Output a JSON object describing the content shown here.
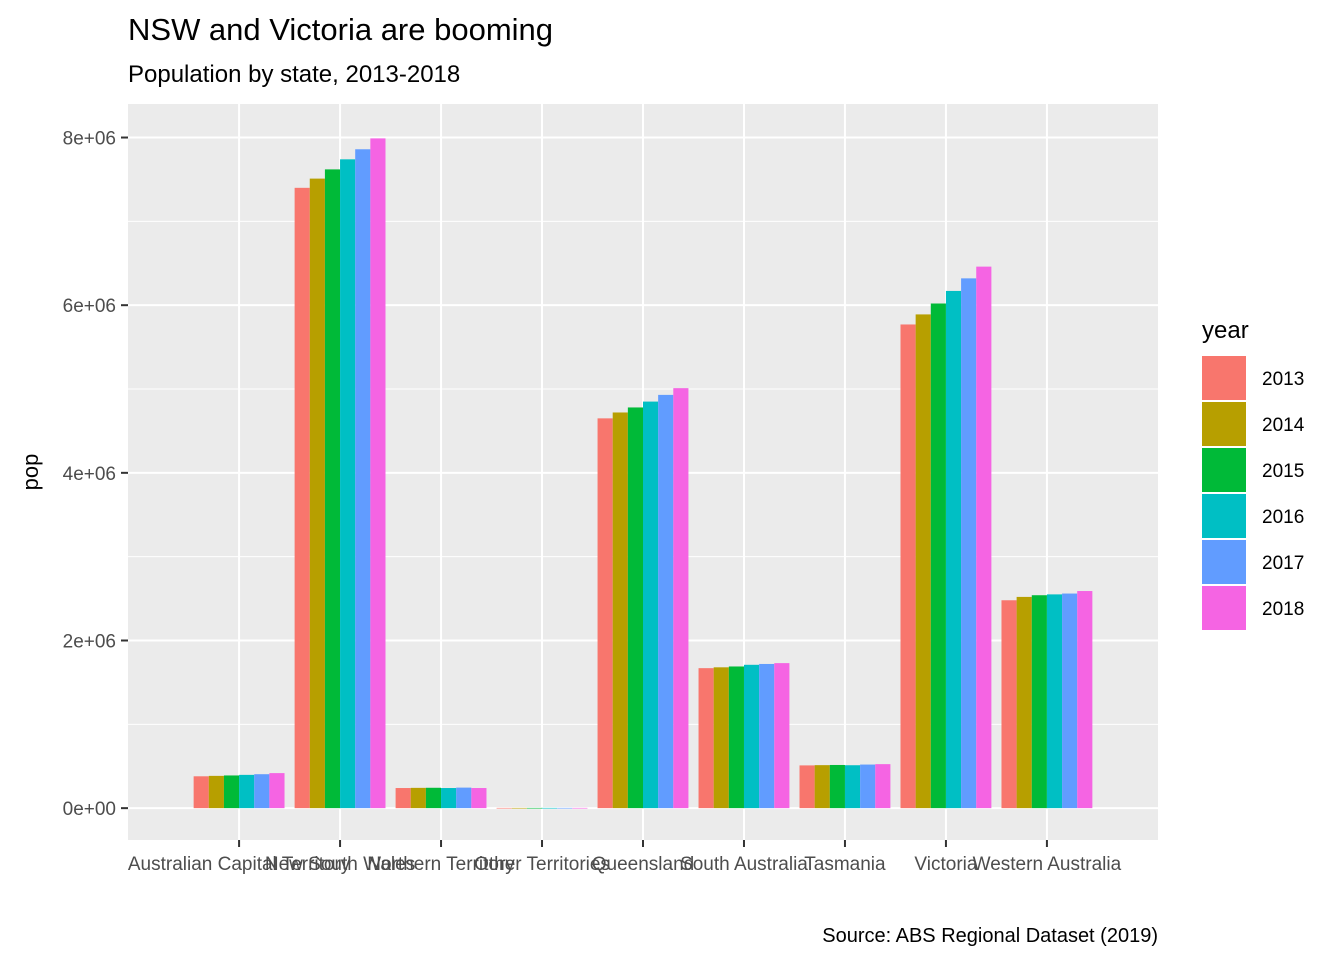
{
  "chart_data": {
    "type": "bar",
    "title": "NSW and Victoria are booming",
    "subtitle": "Population by state, 2013-2018",
    "caption": "Source: ABS Regional Dataset (2019)",
    "xlabel": "",
    "ylabel": "pop",
    "ylim": [
      -380000,
      8400000
    ],
    "yticks": [
      0,
      2000000,
      4000000,
      6000000,
      8000000
    ],
    "ytick_labels": [
      "0e+00",
      "2e+06",
      "4e+06",
      "6e+06",
      "8e+06"
    ],
    "grid": true,
    "legend": {
      "title": "year",
      "position": "right"
    },
    "categories": [
      "Australian Capital Territory",
      "New South Wales",
      "Northern Territory",
      "Other Territories",
      "Queensland",
      "South Australia",
      "Tasmania",
      "Victoria",
      "Western Australia"
    ],
    "series": [
      {
        "name": "2013",
        "color": "#F8766D",
        "values": [
          380000,
          7400000,
          240000,
          3000,
          4650000,
          1670000,
          510000,
          5770000,
          2480000
        ]
      },
      {
        "name": "2014",
        "color": "#B79F00",
        "values": [
          385000,
          7510000,
          242000,
          3000,
          4720000,
          1680000,
          513000,
          5890000,
          2520000
        ]
      },
      {
        "name": "2015",
        "color": "#00BA38",
        "values": [
          390000,
          7620000,
          243000,
          3000,
          4780000,
          1690000,
          515000,
          6020000,
          2540000
        ]
      },
      {
        "name": "2016",
        "color": "#00BFC4",
        "values": [
          397000,
          7740000,
          240000,
          3000,
          4850000,
          1710000,
          512000,
          6170000,
          2550000
        ]
      },
      {
        "name": "2017",
        "color": "#619CFF",
        "values": [
          405000,
          7860000,
          245000,
          3000,
          4930000,
          1720000,
          520000,
          6320000,
          2560000
        ]
      },
      {
        "name": "2018",
        "color": "#F564E3",
        "values": [
          418000,
          7990000,
          240000,
          3000,
          5010000,
          1730000,
          525000,
          6460000,
          2590000
        ]
      }
    ]
  }
}
